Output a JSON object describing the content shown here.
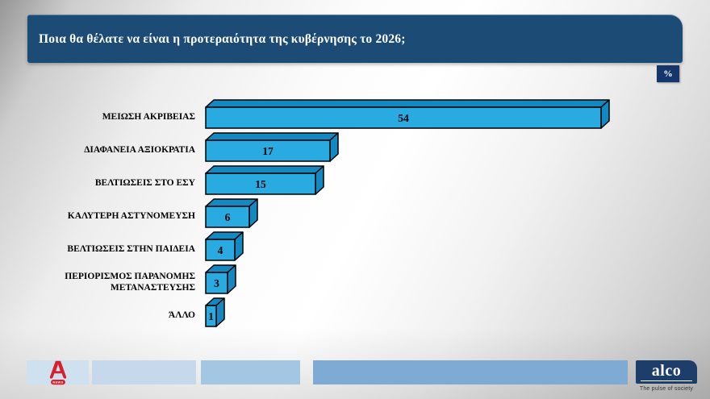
{
  "header": {
    "title": "Ποια θα θέλατε να είναι η προτεραιότητα της κυβέρνησης το 2026;",
    "unit_badge": "%"
  },
  "chart_data": {
    "type": "bar",
    "orientation": "horizontal",
    "style": "3d-horizontal-bars",
    "title": "Ποια θα θέλατε να είναι η προτεραιότητα της κυβέρνησης το 2026;",
    "unit": "%",
    "categories": [
      "ΜΕΙΩΣΗ ΑΚΡΙΒΕΙΑΣ",
      "ΔΙΑΦΑΝΕΙΑ ΑΞΙΟΚΡΑΤΙΑ",
      "ΒΕΛΤΙΩΣΕΙΣ ΣΤΟ ΕΣΥ",
      "ΚΑΛΥΤΕΡΗ ΑΣΤΥΝΟΜΕΥΣΗ",
      "ΒΕΛΤΙΩΣΕΙΣ ΣΤΗΝ ΠΑΙΔΕΙΑ",
      "ΠΕΡΙΟΡΙΣΜΟΣ ΠΑΡΑΝΟΜΗΣ ΜΕΤΑΝΑΣΤΕΥΣΗΣ",
      "ΆΛΛΟ"
    ],
    "values": [
      54,
      17,
      15,
      6,
      4,
      3,
      1
    ],
    "value_labels_shown": true,
    "xlim": [
      0,
      58
    ],
    "grid": false,
    "legend": false,
    "bar_face_color": "#29aae1",
    "bar_depth_color": "#1489c1",
    "bar_outline_color": "#000000",
    "label_color": "#000000"
  },
  "footer": {
    "alpha_logo": {
      "name": "Alpha NEWS",
      "badge_text": "NEWS",
      "color": "#d4212d"
    },
    "alco_logo": {
      "name": "alco",
      "tagline": "The pulse of society",
      "color": "#1d3d6b"
    }
  },
  "colors": {
    "header_bg": "#1c4b75",
    "badge_bg": "#15356d",
    "footer_blocks": [
      "#cfe0ef",
      "#c6d9ec",
      "#a3c6e3",
      "#7dabd4"
    ]
  }
}
